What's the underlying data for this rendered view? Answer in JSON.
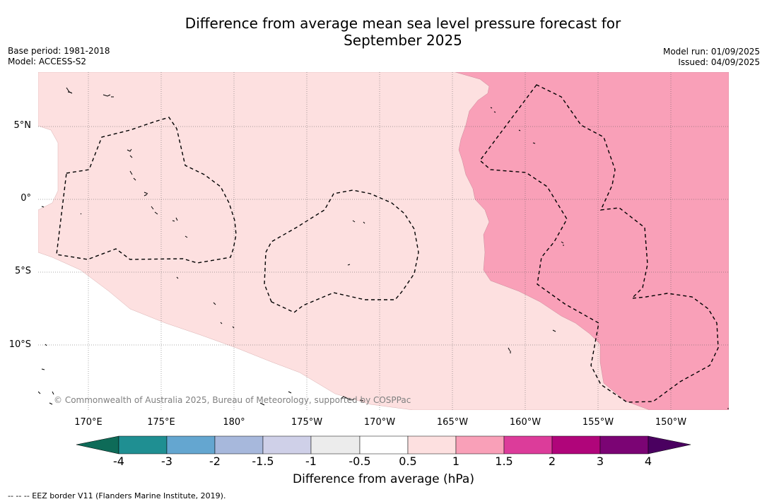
{
  "title_line1": "Difference from average mean sea level pressure forecast for",
  "title_line2": "September 2025",
  "base_period": "Base period: 1981-2018",
  "model": "Model: ACCESS-S2",
  "model_run": "Model run: 01/09/2025",
  "issued": "Issued: 04/09/2025",
  "copyright": "© Commonwealth of Australia 2025, Bureau of Meteorology, supported by COSPPac",
  "latitudes": [
    "5°N",
    "0°",
    "5°S",
    "10°S"
  ],
  "longitudes": [
    "170°E",
    "175°E",
    "180°",
    "175°W",
    "170°W",
    "165°W",
    "160°W",
    "155°W",
    "150°W"
  ],
  "colorbar": {
    "ticks": [
      "-4",
      "-3",
      "-2",
      "-1.5",
      "-1",
      "-0.5",
      "0.5",
      "1",
      "1.5",
      "2",
      "3",
      "4"
    ],
    "colors": {
      "below_min": "#0e6b58",
      "c1": "#1f8f92",
      "c2": "#64a6d0",
      "c3": "#a7b8dc",
      "c4": "#cfd0e8",
      "c5": "#ececec",
      "c6": "#ffffff",
      "c7": "#fde0e0",
      "c8": "#f9a0b8",
      "c9": "#dc3c9a",
      "c10": "#b0057a",
      "c11": "#7b0474",
      "above_max": "#4a0060"
    },
    "label": "Difference from average (hPa)"
  },
  "legend_note": "--  --  -- EEZ border V11 (Flanders Marine Institute, 2019)."
}
